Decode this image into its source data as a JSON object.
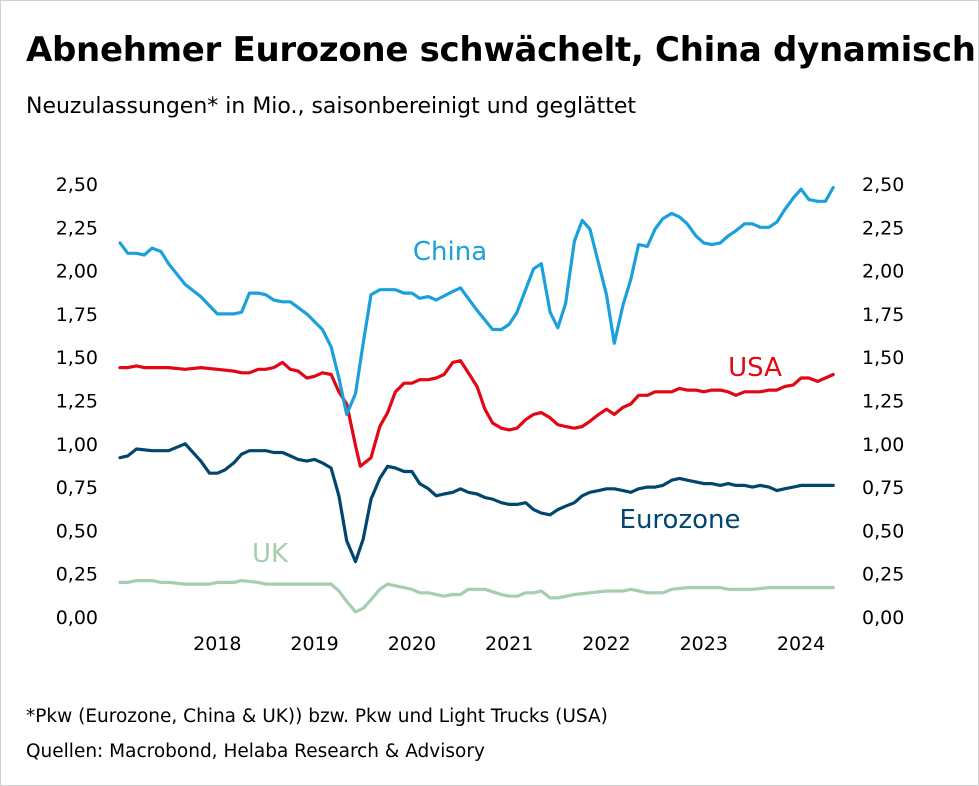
{
  "title": "Abnehmer Eurozone schwächelt, China dynamisch",
  "subtitle": "Neuzulassungen* in Mio., saisonbereinigt und geglättet",
  "footnote": "*Pkw (Eurozone, China & UK)) bzw. Pkw und Light Trucks (USA)",
  "source": "Quellen: Macrobond, Helaba Research & Advisory",
  "chart_data": {
    "type": "line",
    "x_axis": {
      "min": 2017.5,
      "max": 2024.9,
      "tick_labels": [
        "2018",
        "2019",
        "2020",
        "2021",
        "2022",
        "2023",
        "2024"
      ],
      "tick_values": [
        2018,
        2019,
        2020,
        2021,
        2022,
        2023,
        2024
      ]
    },
    "y_axis": {
      "min": 0,
      "max": 2.5,
      "step": 0.25,
      "tick_labels": [
        "0,00",
        "0,25",
        "0,50",
        "0,75",
        "1,00",
        "1,25",
        "1,50",
        "1,75",
        "2,00",
        "2,25",
        "2,50"
      ],
      "left_and_right": true
    },
    "grid": false,
    "legend": "direct labels on lines",
    "series": [
      {
        "name": "China",
        "color": "#1aa0db",
        "x": [
          2017.5,
          2017.58,
          2017.67,
          2017.75,
          2017.83,
          2017.92,
          2018.0,
          2018.17,
          2018.33,
          2018.5,
          2018.67,
          2018.75,
          2018.83,
          2018.92,
          2019.0,
          2019.08,
          2019.17,
          2019.25,
          2019.42,
          2019.58,
          2019.67,
          2019.75,
          2019.83,
          2019.92,
          2020.0,
          2020.08,
          2020.17,
          2020.25,
          2020.33,
          2020.42,
          2020.5,
          2020.58,
          2020.67,
          2020.75,
          2020.92,
          2021.0,
          2021.17,
          2021.33,
          2021.42,
          2021.5,
          2021.58,
          2021.75,
          2021.83,
          2021.92,
          2022.0,
          2022.08,
          2022.17,
          2022.25,
          2022.33,
          2022.5,
          2022.58,
          2022.67,
          2022.75,
          2022.83,
          2022.92,
          2023.0,
          2023.08,
          2023.17,
          2023.25,
          2023.33,
          2023.42,
          2023.5,
          2023.58,
          2023.67,
          2023.75,
          2023.83,
          2023.92,
          2024.0,
          2024.08,
          2024.17,
          2024.25,
          2024.33,
          2024.42,
          2024.5,
          2024.58,
          2024.67,
          2024.75,
          2024.83
        ],
        "values": [
          2.16,
          2.1,
          2.1,
          2.09,
          2.13,
          2.11,
          2.04,
          1.92,
          1.85,
          1.75,
          1.75,
          1.76,
          1.87,
          1.87,
          1.86,
          1.83,
          1.82,
          1.82,
          1.75,
          1.66,
          1.56,
          1.38,
          1.17,
          1.29,
          1.58,
          1.86,
          1.89,
          1.89,
          1.89,
          1.87,
          1.87,
          1.84,
          1.85,
          1.83,
          1.88,
          1.9,
          1.77,
          1.66,
          1.66,
          1.69,
          1.76,
          2.01,
          2.04,
          1.76,
          1.67,
          1.81,
          2.17,
          2.29,
          2.24,
          1.86,
          1.58,
          1.8,
          1.95,
          2.15,
          2.14,
          2.24,
          2.3,
          2.33,
          2.31,
          2.27,
          2.2,
          2.16,
          2.15,
          2.16,
          2.2,
          2.23,
          2.27,
          2.27,
          2.25,
          2.25,
          2.28,
          2.35,
          2.42,
          2.47,
          2.41,
          2.4,
          2.4,
          2.48
        ]
      },
      {
        "name": "USA",
        "color": "#e30613",
        "x": [
          2017.5,
          2017.58,
          2017.67,
          2017.75,
          2017.83,
          2018.0,
          2018.17,
          2018.33,
          2018.5,
          2018.67,
          2018.75,
          2018.83,
          2018.92,
          2019.0,
          2019.08,
          2019.17,
          2019.25,
          2019.33,
          2019.42,
          2019.5,
          2019.58,
          2019.67,
          2019.75,
          2019.83,
          2019.92,
          2019.97,
          2020.08,
          2020.17,
          2020.25,
          2020.33,
          2020.42,
          2020.5,
          2020.58,
          2020.67,
          2020.75,
          2020.83,
          2020.92,
          2021.0,
          2021.08,
          2021.17,
          2021.25,
          2021.33,
          2021.42,
          2021.5,
          2021.58,
          2021.67,
          2021.75,
          2021.83,
          2021.92,
          2022.0,
          2022.08,
          2022.17,
          2022.25,
          2022.33,
          2022.42,
          2022.5,
          2022.58,
          2022.67,
          2022.75,
          2022.83,
          2022.92,
          2023.0,
          2023.08,
          2023.17,
          2023.25,
          2023.33,
          2023.42,
          2023.5,
          2023.58,
          2023.67,
          2023.75,
          2023.83,
          2023.92,
          2024.0,
          2024.08,
          2024.17,
          2024.25,
          2024.33,
          2024.42,
          2024.5,
          2024.58,
          2024.67,
          2024.75,
          2024.83
        ],
        "values": [
          1.44,
          1.44,
          1.45,
          1.44,
          1.44,
          1.44,
          1.43,
          1.44,
          1.43,
          1.42,
          1.41,
          1.41,
          1.43,
          1.43,
          1.44,
          1.47,
          1.43,
          1.42,
          1.38,
          1.39,
          1.41,
          1.4,
          1.3,
          1.23,
          0.99,
          0.87,
          0.92,
          1.1,
          1.18,
          1.3,
          1.35,
          1.35,
          1.37,
          1.37,
          1.38,
          1.4,
          1.47,
          1.48,
          1.41,
          1.33,
          1.2,
          1.12,
          1.09,
          1.08,
          1.09,
          1.14,
          1.17,
          1.18,
          1.15,
          1.11,
          1.1,
          1.09,
          1.1,
          1.13,
          1.17,
          1.2,
          1.17,
          1.21,
          1.23,
          1.28,
          1.28,
          1.3,
          1.3,
          1.3,
          1.32,
          1.31,
          1.31,
          1.3,
          1.31,
          1.31,
          1.3,
          1.28,
          1.3,
          1.3,
          1.3,
          1.31,
          1.31,
          1.33,
          1.34,
          1.38,
          1.38,
          1.36,
          1.38,
          1.4
        ]
      },
      {
        "name": "Eurozone",
        "color": "#00466e",
        "x": [
          2017.5,
          2017.58,
          2017.67,
          2017.83,
          2018.0,
          2018.17,
          2018.33,
          2018.42,
          2018.5,
          2018.58,
          2018.67,
          2018.75,
          2018.83,
          2019.0,
          2019.08,
          2019.17,
          2019.25,
          2019.33,
          2019.42,
          2019.5,
          2019.58,
          2019.67,
          2019.75,
          2019.83,
          2019.92,
          2020.0,
          2020.08,
          2020.17,
          2020.25,
          2020.33,
          2020.42,
          2020.5,
          2020.58,
          2020.67,
          2020.75,
          2020.83,
          2020.92,
          2021.0,
          2021.08,
          2021.17,
          2021.25,
          2021.33,
          2021.42,
          2021.5,
          2021.58,
          2021.67,
          2021.75,
          2021.83,
          2021.92,
          2022.0,
          2022.08,
          2022.17,
          2022.25,
          2022.33,
          2022.42,
          2022.5,
          2022.58,
          2022.67,
          2022.75,
          2022.83,
          2022.92,
          2023.0,
          2023.08,
          2023.17,
          2023.25,
          2023.33,
          2023.42,
          2023.5,
          2023.58,
          2023.67,
          2023.75,
          2023.83,
          2023.92,
          2024.0,
          2024.08,
          2024.17,
          2024.25,
          2024.33,
          2024.42,
          2024.5,
          2024.58,
          2024.67,
          2024.75,
          2024.83
        ],
        "values": [
          0.92,
          0.93,
          0.97,
          0.96,
          0.96,
          1.0,
          0.9,
          0.83,
          0.83,
          0.85,
          0.89,
          0.94,
          0.96,
          0.96,
          0.95,
          0.95,
          0.93,
          0.91,
          0.9,
          0.91,
          0.89,
          0.86,
          0.7,
          0.44,
          0.32,
          0.45,
          0.68,
          0.8,
          0.87,
          0.86,
          0.84,
          0.84,
          0.77,
          0.74,
          0.7,
          0.71,
          0.72,
          0.74,
          0.72,
          0.71,
          0.69,
          0.68,
          0.66,
          0.65,
          0.65,
          0.66,
          0.62,
          0.6,
          0.59,
          0.62,
          0.64,
          0.66,
          0.7,
          0.72,
          0.73,
          0.74,
          0.74,
          0.73,
          0.72,
          0.74,
          0.75,
          0.75,
          0.76,
          0.79,
          0.8,
          0.79,
          0.78,
          0.77,
          0.77,
          0.76,
          0.77,
          0.76,
          0.76,
          0.75,
          0.76,
          0.75,
          0.73,
          0.74,
          0.75,
          0.76,
          0.76,
          0.76,
          0.76,
          0.76
        ]
      },
      {
        "name": "UK",
        "color": "#a7cdb0",
        "x": [
          2017.5,
          2017.58,
          2017.67,
          2017.83,
          2017.92,
          2018.0,
          2018.17,
          2018.33,
          2018.42,
          2018.5,
          2018.67,
          2018.75,
          2018.92,
          2019.0,
          2019.08,
          2019.25,
          2019.5,
          2019.67,
          2019.75,
          2019.83,
          2019.92,
          2020.0,
          2020.08,
          2020.17,
          2020.25,
          2020.33,
          2020.42,
          2020.5,
          2020.58,
          2020.67,
          2020.75,
          2020.83,
          2020.92,
          2021.0,
          2021.08,
          2021.17,
          2021.25,
          2021.42,
          2021.5,
          2021.58,
          2021.67,
          2021.75,
          2021.83,
          2021.92,
          2022.0,
          2022.17,
          2022.33,
          2022.5,
          2022.67,
          2022.75,
          2022.92,
          2023.0,
          2023.08,
          2023.17,
          2023.33,
          2023.5,
          2023.67,
          2023.75,
          2023.83,
          2024.0,
          2024.17,
          2024.5,
          2024.83
        ],
        "values": [
          0.2,
          0.2,
          0.21,
          0.21,
          0.2,
          0.2,
          0.19,
          0.19,
          0.19,
          0.2,
          0.2,
          0.21,
          0.2,
          0.19,
          0.19,
          0.19,
          0.19,
          0.19,
          0.15,
          0.09,
          0.03,
          0.05,
          0.1,
          0.16,
          0.19,
          0.18,
          0.17,
          0.16,
          0.14,
          0.14,
          0.13,
          0.12,
          0.13,
          0.13,
          0.16,
          0.16,
          0.16,
          0.13,
          0.12,
          0.12,
          0.14,
          0.14,
          0.15,
          0.11,
          0.11,
          0.13,
          0.14,
          0.15,
          0.15,
          0.16,
          0.14,
          0.14,
          0.14,
          0.16,
          0.17,
          0.17,
          0.17,
          0.16,
          0.16,
          0.16,
          0.17,
          0.17,
          0.17
        ]
      }
    ]
  }
}
